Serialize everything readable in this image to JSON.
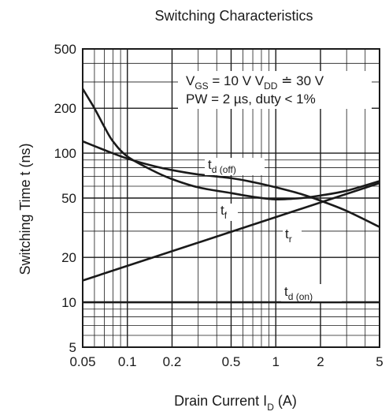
{
  "chart_data": {
    "type": "line",
    "title": "Switching Characteristics",
    "xlabel": {
      "main": "Drain Current  I",
      "sub": "D",
      "unit": "  (A)"
    },
    "ylabel": "Switching Time  t  (ns)",
    "x_scale": "log",
    "y_scale": "log",
    "xlim": [
      0.05,
      5
    ],
    "ylim": [
      5,
      500
    ],
    "x_ticks": [
      {
        "value": 0.05,
        "label": "0.05"
      },
      {
        "value": 0.1,
        "label": "0.1"
      },
      {
        "value": 0.2,
        "label": "0.2"
      },
      {
        "value": 0.5,
        "label": "0.5"
      },
      {
        "value": 1,
        "label": "1"
      },
      {
        "value": 2,
        "label": "2"
      },
      {
        "value": 5,
        "label": "5"
      }
    ],
    "y_ticks": [
      {
        "value": 5,
        "label": "5"
      },
      {
        "value": 10,
        "label": "10"
      },
      {
        "value": 20,
        "label": "20"
      },
      {
        "value": 50,
        "label": "50"
      },
      {
        "value": 100,
        "label": "100"
      },
      {
        "value": 200,
        "label": "200"
      },
      {
        "value": 500,
        "label": "500"
      }
    ],
    "grid": true,
    "conditions": {
      "line1": {
        "vgs_main": "V",
        "vgs_sub": "GS",
        "vgs_rest": " = 10 V  ",
        "vdd_main": "V",
        "vdd_sub": "DD",
        "vdd_rest": " ≐ 30 V"
      },
      "line2": "PW = 2 µs, duty < 1%"
    },
    "series": [
      {
        "name": "t_d(off)",
        "label_main": "t",
        "label_sub": "d (off)",
        "x": [
          0.05,
          0.07,
          0.1,
          0.15,
          0.2,
          0.3,
          0.5,
          0.7,
          1,
          1.5,
          2,
          3,
          5
        ],
        "y": [
          120,
          105,
          92,
          82,
          77,
          72,
          68,
          64,
          59,
          53,
          48,
          41,
          32
        ]
      },
      {
        "name": "t_f",
        "label_main": "t",
        "label_sub": "f",
        "x": [
          0.05,
          0.06,
          0.07,
          0.08,
          0.1,
          0.15,
          0.2,
          0.3,
          0.5,
          0.7,
          1,
          1.5,
          2,
          3,
          5
        ],
        "y": [
          270,
          200,
          150,
          120,
          95,
          76,
          67,
          59,
          54,
          51,
          49,
          50,
          52,
          56,
          65
        ]
      },
      {
        "name": "t_r",
        "label_main": "t",
        "label_sub": "r",
        "x": [
          0.05,
          5
        ],
        "y": [
          14,
          63
        ]
      },
      {
        "name": "t_d(on)",
        "label_main": "t",
        "label_sub": "d (on)",
        "x": [
          0.05,
          5
        ],
        "y": [
          10,
          10
        ]
      }
    ]
  }
}
